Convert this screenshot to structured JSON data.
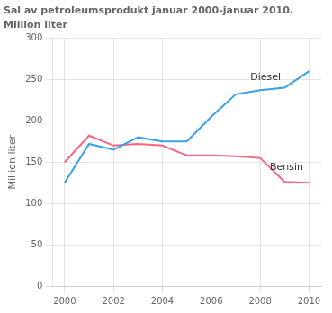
{
  "chart_data": {
    "type": "line",
    "title": "Sal av petroleumsprodukt januar 2000-januar 2010.",
    "subtitle": "Million liter",
    "y_label": "Million liter",
    "x": [
      2000,
      2001,
      2002,
      2003,
      2004,
      2005,
      2006,
      2007,
      2008,
      2009,
      2010
    ],
    "series": [
      {
        "name": "Diesel",
        "values": [
          125,
          172,
          165,
          180,
          175,
          175,
          205,
          232,
          237,
          240,
          260
        ]
      },
      {
        "name": "Bensin",
        "values": [
          150,
          182,
          170,
          172,
          170,
          158,
          158,
          157,
          155,
          126,
          125
        ]
      }
    ],
    "annotations": [
      {
        "text": "Diesel",
        "x": 2007.6,
        "y": 252
      },
      {
        "text": "Bensin",
        "x": 2008.4,
        "y": 143
      }
    ],
    "xlim": [
      1999.5,
      2010.5
    ],
    "xticks": [
      2000,
      2002,
      2004,
      2006,
      2008,
      2010
    ],
    "ylim": [
      0,
      300
    ],
    "yticks": [
      0,
      50,
      100,
      150,
      200,
      250,
      300
    ],
    "grid": true,
    "legend": false
  }
}
